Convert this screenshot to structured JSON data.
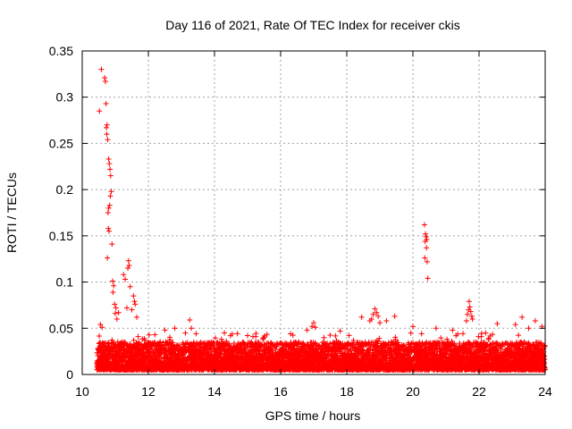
{
  "chart_data": {
    "type": "scatter",
    "title": "Day 116 of 2021, Rate Of TEC Index for receiver ckis",
    "xlabel": "GPS time / hours",
    "ylabel": "ROTI / TECUs",
    "xlim": [
      10,
      24
    ],
    "ylim": [
      0,
      0.35
    ],
    "xticks": [
      10,
      12,
      14,
      16,
      18,
      20,
      22,
      24
    ],
    "yticks": [
      0,
      0.05,
      0.1,
      0.15,
      0.2,
      0.25,
      0.3,
      0.35
    ],
    "xtick_labels": [
      "10",
      "12",
      "14",
      "16",
      "18",
      "20",
      "22",
      "24"
    ],
    "ytick_labels": [
      "0",
      "0.05",
      "0.1",
      "0.15",
      "0.2",
      "0.25",
      "0.3",
      "0.35"
    ],
    "grid": true,
    "marker": "+",
    "color": "#ff0000",
    "series": [
      {
        "name": "ROTI",
        "points": [
          [
            10.58,
            0.33
          ],
          [
            10.52,
            0.285
          ],
          [
            10.68,
            0.321
          ],
          [
            10.7,
            0.317
          ],
          [
            10.72,
            0.293
          ],
          [
            10.75,
            0.27
          ],
          [
            10.73,
            0.267
          ],
          [
            10.74,
            0.26
          ],
          [
            10.77,
            0.254
          ],
          [
            10.8,
            0.233
          ],
          [
            10.82,
            0.228
          ],
          [
            10.84,
            0.222
          ],
          [
            10.86,
            0.215
          ],
          [
            10.88,
            0.198
          ],
          [
            10.85,
            0.193
          ],
          [
            10.83,
            0.183
          ],
          [
            10.8,
            0.18
          ],
          [
            10.78,
            0.175
          ],
          [
            10.79,
            0.158
          ],
          [
            10.81,
            0.155
          ],
          [
            10.9,
            0.141
          ],
          [
            10.76,
            0.126
          ],
          [
            10.92,
            0.101
          ],
          [
            10.95,
            0.096
          ],
          [
            10.93,
            0.089
          ],
          [
            10.98,
            0.076
          ],
          [
            11.02,
            0.072
          ],
          [
            11.0,
            0.066
          ],
          [
            11.05,
            0.06
          ],
          [
            11.1,
            0.067
          ],
          [
            10.55,
            0.054
          ],
          [
            10.6,
            0.051
          ],
          [
            11.25,
            0.108
          ],
          [
            11.3,
            0.103
          ],
          [
            11.4,
            0.123
          ],
          [
            11.42,
            0.118
          ],
          [
            11.38,
            0.115
          ],
          [
            11.45,
            0.095
          ],
          [
            11.55,
            0.085
          ],
          [
            11.58,
            0.079
          ],
          [
            11.6,
            0.076
          ],
          [
            11.5,
            0.07
          ],
          [
            11.35,
            0.072
          ],
          [
            11.65,
            0.062
          ],
          [
            20.35,
            0.162
          ],
          [
            20.38,
            0.152
          ],
          [
            20.4,
            0.149
          ],
          [
            20.42,
            0.146
          ],
          [
            20.37,
            0.144
          ],
          [
            20.41,
            0.137
          ],
          [
            20.36,
            0.126
          ],
          [
            20.43,
            0.122
          ],
          [
            20.45,
            0.104
          ],
          [
            21.7,
            0.079
          ],
          [
            21.72,
            0.073
          ],
          [
            21.68,
            0.07
          ],
          [
            21.75,
            0.068
          ],
          [
            21.65,
            0.065
          ],
          [
            21.78,
            0.063
          ],
          [
            21.8,
            0.06
          ],
          [
            21.62,
            0.058
          ],
          [
            18.85,
            0.071
          ],
          [
            18.9,
            0.067
          ],
          [
            18.8,
            0.065
          ],
          [
            18.95,
            0.063
          ],
          [
            18.75,
            0.06
          ],
          [
            18.7,
            0.058
          ],
          [
            19.0,
            0.056
          ],
          [
            19.45,
            0.063
          ],
          [
            19.2,
            0.058
          ],
          [
            18.45,
            0.062
          ],
          [
            17.0,
            0.056
          ],
          [
            16.95,
            0.052
          ],
          [
            17.05,
            0.051
          ],
          [
            16.8,
            0.048
          ],
          [
            13.25,
            0.059
          ],
          [
            13.3,
            0.05
          ],
          [
            12.8,
            0.05
          ],
          [
            12.5,
            0.048
          ],
          [
            12.2,
            0.043
          ],
          [
            14.3,
            0.045
          ],
          [
            15.0,
            0.042
          ],
          [
            15.5,
            0.04
          ],
          [
            16.3,
            0.044
          ],
          [
            17.8,
            0.047
          ],
          [
            20.0,
            0.052
          ],
          [
            20.7,
            0.05
          ],
          [
            21.2,
            0.048
          ],
          [
            22.2,
            0.045
          ],
          [
            22.55,
            0.055
          ],
          [
            23.1,
            0.054
          ],
          [
            23.3,
            0.062
          ],
          [
            23.5,
            0.05
          ],
          [
            23.7,
            0.058
          ],
          [
            23.9,
            0.052
          ]
        ],
        "noise_band": {
          "start": 10.45,
          "end": 24.0,
          "step": 0.01,
          "typical_max": 0.035,
          "typical_min": 0.005
        }
      }
    ]
  }
}
